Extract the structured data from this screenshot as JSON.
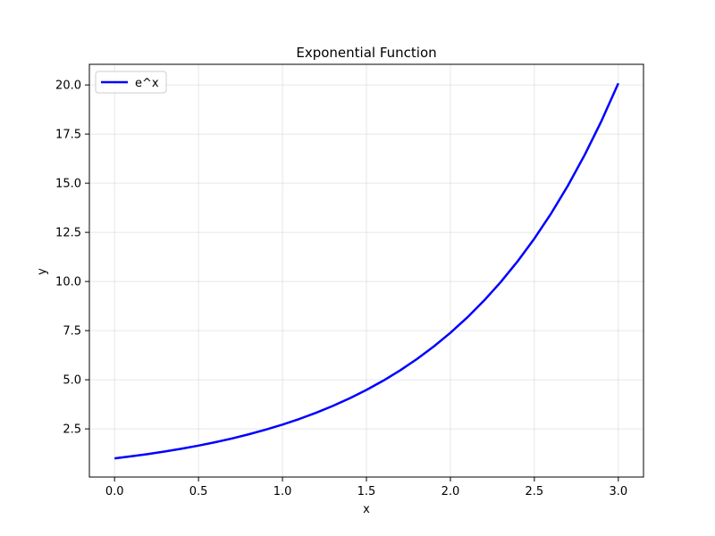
{
  "chart_data": {
    "type": "line",
    "title": "Exponential Function",
    "xlabel": "x",
    "ylabel": "y",
    "xlim": [
      -0.15,
      3.15
    ],
    "ylim": [
      0.05,
      21.05
    ],
    "xticks": [
      0.0,
      0.5,
      1.0,
      1.5,
      2.0,
      2.5,
      3.0
    ],
    "xtick_labels": [
      "0.0",
      "0.5",
      "1.0",
      "1.5",
      "2.0",
      "2.5",
      "3.0"
    ],
    "yticks": [
      2.5,
      5.0,
      7.5,
      10.0,
      12.5,
      15.0,
      17.5,
      20.0
    ],
    "ytick_labels": [
      "2.5",
      "5.0",
      "7.5",
      "10.0",
      "12.5",
      "15.0",
      "17.5",
      "20.0"
    ],
    "grid": true,
    "legend_position": "upper-left",
    "series": [
      {
        "name": "e^x",
        "color": "#0000ff",
        "x": [
          0.0,
          0.1,
          0.2,
          0.3,
          0.4,
          0.5,
          0.6,
          0.7,
          0.8,
          0.9,
          1.0,
          1.1,
          1.2,
          1.3,
          1.4,
          1.5,
          1.6,
          1.7,
          1.8,
          1.9,
          2.0,
          2.1,
          2.2,
          2.3,
          2.4,
          2.5,
          2.6,
          2.7,
          2.8,
          2.9,
          3.0
        ],
        "y": [
          1.0,
          1.105,
          1.221,
          1.35,
          1.492,
          1.649,
          1.822,
          2.014,
          2.226,
          2.46,
          2.718,
          3.004,
          3.32,
          3.669,
          4.055,
          4.482,
          4.953,
          5.474,
          6.05,
          6.686,
          7.389,
          8.166,
          9.025,
          9.974,
          11.023,
          12.182,
          13.464,
          14.88,
          16.445,
          18.174,
          20.086
        ]
      }
    ]
  }
}
